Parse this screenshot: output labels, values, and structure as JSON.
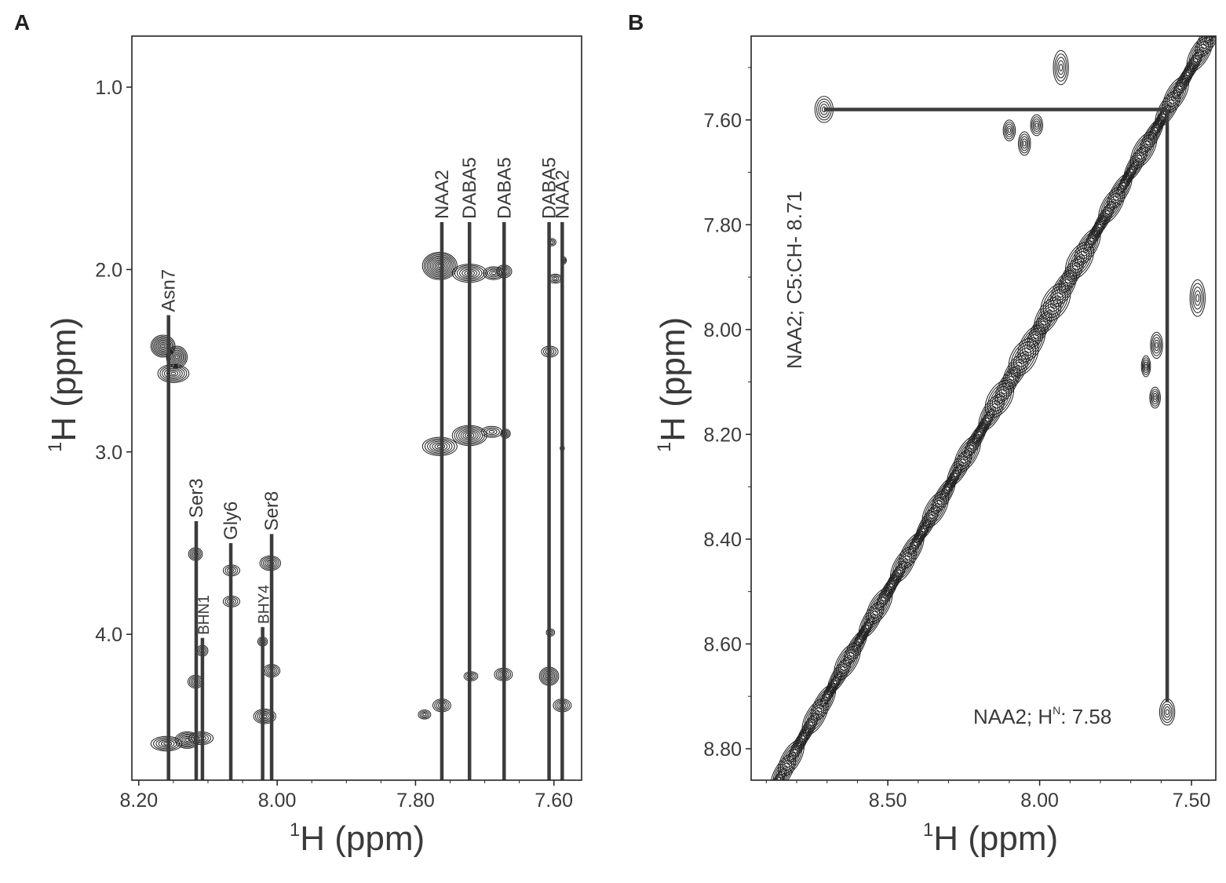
{
  "panels": {
    "a": {
      "letter": "A"
    },
    "b": {
      "letter": "B"
    }
  },
  "chart_data": [
    {
      "type": "scatter",
      "subtype": "2D NMR contour spectrum (TOCSY region)",
      "panel": "A",
      "xlabel": "H (ppm)",
      "xlabel_superscript": "1",
      "ylabel": "H (ppm)",
      "ylabel_superscript": "1",
      "xlim": [
        8.21,
        7.56
      ],
      "ylim": [
        0.72,
        4.8
      ],
      "x_ticks": [
        8.2,
        8.0,
        7.8,
        7.6
      ],
      "x_tick_labels": [
        "8.20",
        "8.00",
        "7.80",
        "7.60"
      ],
      "y_ticks": [
        1.0,
        2.0,
        3.0,
        4.0
      ],
      "y_tick_labels": [
        "1.0",
        "2.0",
        "3.0",
        "4.0"
      ],
      "assignments": [
        {
          "label": "Asn7",
          "x": 8.157,
          "top": 2.25,
          "size": "normal"
        },
        {
          "label": "Ser3",
          "x": 8.117,
          "top": 3.38,
          "size": "normal"
        },
        {
          "label": "BHN1",
          "x": 8.108,
          "top": 4.02,
          "size": "small"
        },
        {
          "label": "Gly6",
          "x": 8.067,
          "top": 3.5,
          "size": "normal"
        },
        {
          "label": "BHY4",
          "x": 8.021,
          "top": 3.96,
          "size": "small"
        },
        {
          "label": "Ser8",
          "x": 8.008,
          "top": 3.45,
          "size": "normal"
        },
        {
          "label": "NAA2",
          "x": 7.762,
          "top": 1.74,
          "size": "normal"
        },
        {
          "label": "DABA5",
          "x": 7.722,
          "top": 1.74,
          "size": "normal"
        },
        {
          "label": "DABA5",
          "x": 7.672,
          "top": 1.74,
          "size": "normal"
        },
        {
          "label": "DABA5",
          "x": 7.607,
          "top": 1.74,
          "size": "normal"
        },
        {
          "label": "NAA2",
          "x": 7.588,
          "top": 1.74,
          "size": "normal"
        }
      ],
      "peaks": [
        {
          "x": 8.165,
          "y": 2.42,
          "w": 0.035,
          "h": 0.12
        },
        {
          "x": 8.145,
          "y": 2.48,
          "w": 0.03,
          "h": 0.12
        },
        {
          "x": 8.15,
          "y": 2.57,
          "w": 0.045,
          "h": 0.1
        },
        {
          "x": 8.16,
          "y": 4.6,
          "w": 0.045,
          "h": 0.08
        },
        {
          "x": 8.13,
          "y": 4.58,
          "w": 0.035,
          "h": 0.09
        },
        {
          "x": 8.11,
          "y": 4.57,
          "w": 0.035,
          "h": 0.07
        },
        {
          "x": 8.118,
          "y": 3.56,
          "w": 0.02,
          "h": 0.07
        },
        {
          "x": 8.118,
          "y": 4.26,
          "w": 0.022,
          "h": 0.07
        },
        {
          "x": 8.108,
          "y": 4.09,
          "w": 0.016,
          "h": 0.06
        },
        {
          "x": 8.066,
          "y": 3.65,
          "w": 0.024,
          "h": 0.06
        },
        {
          "x": 8.066,
          "y": 3.82,
          "w": 0.024,
          "h": 0.06
        },
        {
          "x": 8.021,
          "y": 4.04,
          "w": 0.014,
          "h": 0.05
        },
        {
          "x": 8.018,
          "y": 4.45,
          "w": 0.032,
          "h": 0.08
        },
        {
          "x": 8.01,
          "y": 3.61,
          "w": 0.03,
          "h": 0.08
        },
        {
          "x": 8.008,
          "y": 4.2,
          "w": 0.024,
          "h": 0.07
        },
        {
          "x": 7.765,
          "y": 1.98,
          "w": 0.05,
          "h": 0.15
        },
        {
          "x": 7.722,
          "y": 2.02,
          "w": 0.05,
          "h": 0.1
        },
        {
          "x": 7.687,
          "y": 2.02,
          "w": 0.03,
          "h": 0.07
        },
        {
          "x": 7.672,
          "y": 2.01,
          "w": 0.022,
          "h": 0.07
        },
        {
          "x": 7.765,
          "y": 2.97,
          "w": 0.05,
          "h": 0.1
        },
        {
          "x": 7.722,
          "y": 2.91,
          "w": 0.05,
          "h": 0.11
        },
        {
          "x": 7.69,
          "y": 2.89,
          "w": 0.03,
          "h": 0.06
        },
        {
          "x": 7.67,
          "y": 2.9,
          "w": 0.014,
          "h": 0.05
        },
        {
          "x": 7.787,
          "y": 4.44,
          "w": 0.018,
          "h": 0.05
        },
        {
          "x": 7.762,
          "y": 4.39,
          "w": 0.026,
          "h": 0.07
        },
        {
          "x": 7.72,
          "y": 4.23,
          "w": 0.02,
          "h": 0.05
        },
        {
          "x": 7.673,
          "y": 4.22,
          "w": 0.026,
          "h": 0.07
        },
        {
          "x": 7.607,
          "y": 4.23,
          "w": 0.028,
          "h": 0.1
        },
        {
          "x": 7.588,
          "y": 4.39,
          "w": 0.026,
          "h": 0.07
        },
        {
          "x": 7.606,
          "y": 2.45,
          "w": 0.024,
          "h": 0.06
        },
        {
          "x": 7.605,
          "y": 3.99,
          "w": 0.012,
          "h": 0.04
        },
        {
          "x": 7.603,
          "y": 1.85,
          "w": 0.012,
          "h": 0.04
        },
        {
          "x": 7.598,
          "y": 2.05,
          "w": 0.02,
          "h": 0.05
        },
        {
          "x": 7.586,
          "y": 1.95,
          "w": 0.008,
          "h": 0.04
        },
        {
          "x": 7.588,
          "y": 2.98,
          "w": 0.006,
          "h": 0.03
        }
      ]
    },
    {
      "type": "scatter",
      "subtype": "2D NMR contour spectrum (NOESY amide region)",
      "panel": "B",
      "xlabel": "H (ppm)",
      "xlabel_superscript": "1",
      "ylabel": "H (ppm)",
      "ylabel_superscript": "1",
      "xlim": [
        8.95,
        7.42
      ],
      "ylim": [
        7.44,
        8.86
      ],
      "x_ticks": [
        8.5,
        8.0,
        7.5
      ],
      "x_tick_labels": [
        "8.50",
        "8.00",
        "7.50"
      ],
      "y_ticks": [
        7.6,
        7.8,
        8.0,
        8.2,
        8.4,
        8.6,
        8.8
      ],
      "y_tick_labels": [
        "7.60",
        "7.80",
        "8.00",
        "8.20",
        "8.40",
        "8.60",
        "8.80"
      ],
      "diagonal": {
        "from": 8.95,
        "to": 7.42
      },
      "crosspeak_lines": {
        "x": 7.58,
        "y": 8.71,
        "corner_y": 7.58
      },
      "annotations": {
        "vertical_label": "NAA2; C5:CH- 8.71",
        "h_label_prefix": "NAA2; H",
        "h_label_sup": "N",
        "h_label_suffix": ": 7.58"
      },
      "peaks": [
        {
          "x": 8.71,
          "y": 7.58,
          "w": 0.06,
          "h": 0.05
        },
        {
          "x": 7.58,
          "y": 8.73,
          "w": 0.05,
          "h": 0.05
        },
        {
          "x": 7.93,
          "y": 7.5,
          "w": 0.05,
          "h": 0.065
        },
        {
          "x": 8.1,
          "y": 7.62,
          "w": 0.04,
          "h": 0.04
        },
        {
          "x": 8.05,
          "y": 7.645,
          "w": 0.04,
          "h": 0.045
        },
        {
          "x": 8.01,
          "y": 7.61,
          "w": 0.04,
          "h": 0.04
        },
        {
          "x": 7.48,
          "y": 7.94,
          "w": 0.05,
          "h": 0.07
        },
        {
          "x": 7.615,
          "y": 8.03,
          "w": 0.04,
          "h": 0.05
        },
        {
          "x": 7.65,
          "y": 8.07,
          "w": 0.03,
          "h": 0.04
        },
        {
          "x": 7.62,
          "y": 8.13,
          "w": 0.035,
          "h": 0.04
        }
      ]
    }
  ]
}
